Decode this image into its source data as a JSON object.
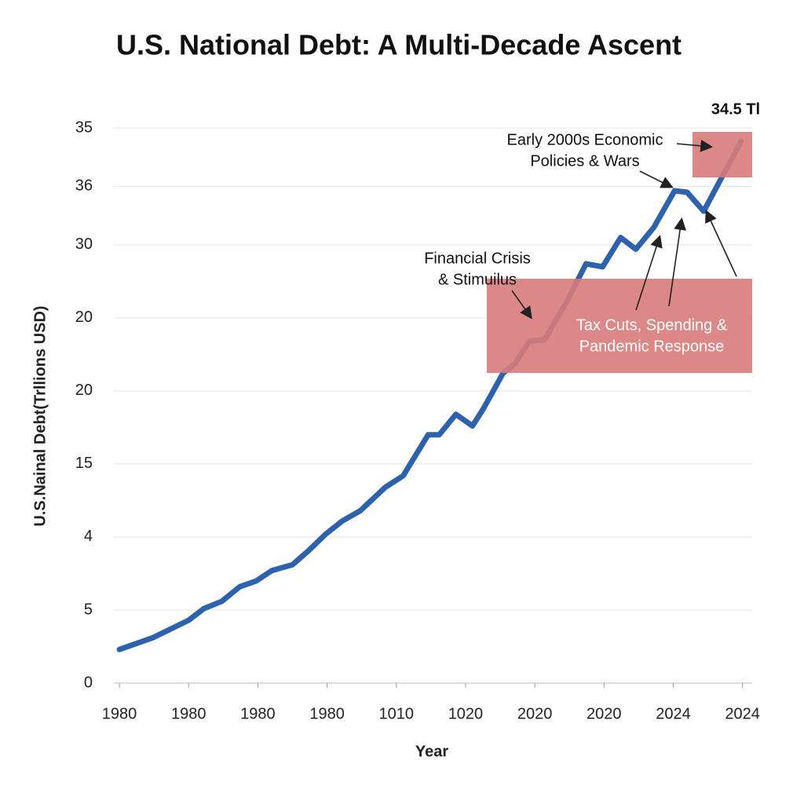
{
  "chart_data": {
    "type": "line",
    "title": "U.S. National Debt: A Multi-Decade Ascent",
    "x_label": "Year",
    "y_label": "U.S.Nainal Debt(Trllions USD)",
    "xlim": [
      1979.6,
      2025.7
    ],
    "xticks": [
      1980,
      {
        "value": 1985,
        "label": "1980"
      },
      {
        "value": 1990,
        "label": "1980"
      },
      {
        "value": 1995,
        "label": "1980"
      },
      {
        "value": 2000,
        "label": "1010"
      },
      {
        "value": 2005,
        "label": "1020"
      },
      {
        "value": 2010,
        "label": "2020"
      },
      {
        "value": 2015,
        "label": "2020"
      },
      {
        "value": 2020,
        "label": "2024"
      },
      {
        "value": 2025,
        "label": "2024"
      }
    ],
    "ylim": [
      0,
      38
    ],
    "yticks": [
      0,
      5,
      {
        "value": 10,
        "label": "4"
      },
      15,
      20,
      {
        "value": 25,
        "label": "20"
      },
      30,
      {
        "value": 34,
        "label": "36"
      },
      {
        "value": 38,
        "label": "35"
      }
    ],
    "grid": true,
    "series": [
      {
        "name": "U.S. National Debt",
        "color": "#2f62ad",
        "x": [
          1980,
          1982.4,
          1985,
          1986.1,
          1987.4,
          1988.7,
          1989.9,
          1991,
          1992.5,
          1993.7,
          1994.9,
          1996.1,
          1997.4,
          1999.2,
          2000.5,
          2002.3,
          2003.1,
          2004.3,
          2005.5,
          2006.3,
          2007.7,
          2008.6,
          2009.6,
          2010.7,
          2012.3,
          2013.7,
          2014.9,
          2016.2,
          2017.3,
          2018.6,
          2020.1,
          2021,
          2022.2,
          2024.9
        ],
        "values": [
          2.3,
          3.1,
          4.3,
          5.1,
          5.6,
          6.6,
          7.0,
          7.7,
          8.1,
          9.1,
          10.2,
          11.1,
          11.8,
          13.4,
          14.2,
          17.0,
          17.0,
          18.4,
          17.6,
          18.8,
          21.2,
          21.9,
          23.4,
          23.5,
          26.1,
          28.7,
          28.5,
          30.5,
          29.7,
          31.2,
          33.7,
          33.6,
          32.3,
          37.1
        ]
      }
    ],
    "annotations": [
      {
        "lines": [
          "34.5 Tl"
        ]
      },
      {
        "lines": [
          "Early 2000s Economic",
          "Policies & Wars"
        ]
      },
      {
        "lines": [
          "Financial Crisis",
          "& Stimuilus"
        ]
      },
      {
        "lines": [
          "Tax Cuts, Spending &",
          "Pandemic Response"
        ]
      }
    ]
  }
}
